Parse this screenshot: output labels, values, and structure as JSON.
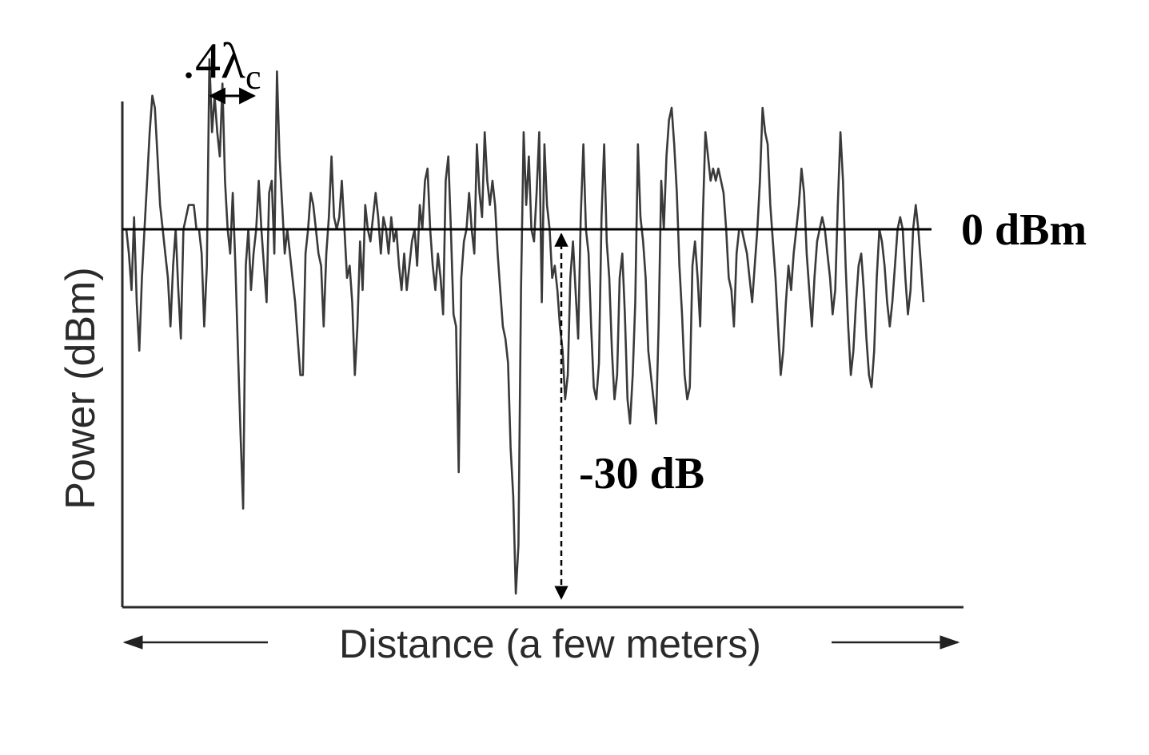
{
  "chart_data": {
    "type": "line",
    "title": "",
    "xlabel": "Distance (a few meters)",
    "ylabel": "Power (dBm)",
    "reference_label": "0 dBm",
    "reference_value": 0,
    "fade_label": "-30 dB",
    "fade_value": -30,
    "wavelength_label_main": ".4λ",
    "wavelength_label_sub": "c",
    "series": [
      {
        "values": [
          0,
          -2,
          -5,
          1,
          -6,
          -10,
          -4,
          0,
          4,
          8,
          11,
          10,
          6,
          2,
          0,
          -2,
          -4,
          -8,
          -3,
          0,
          -5,
          -9,
          0,
          1,
          2,
          2,
          2,
          0,
          0,
          -2,
          -8,
          -3,
          14,
          8,
          11,
          8,
          6,
          12,
          4,
          0,
          -2,
          3,
          -3,
          -10,
          -17,
          -23,
          -3,
          0,
          -5,
          -2,
          0,
          4,
          0,
          -3,
          -6,
          3,
          4,
          -2,
          13,
          6,
          2,
          -2,
          0,
          -2,
          -4,
          -6,
          -9,
          -12,
          -12,
          -2,
          0,
          3,
          2,
          0,
          -2,
          -3,
          -8,
          -2,
          1,
          6,
          1,
          0,
          1,
          4,
          0,
          -4,
          -3,
          -6,
          -12,
          -8,
          -1,
          -5,
          2,
          0,
          -1,
          1,
          3,
          1,
          -2,
          1,
          0,
          -2,
          1,
          -1,
          0,
          -3,
          -5,
          -2,
          -5,
          -3,
          -1,
          0,
          -3,
          2,
          0,
          4,
          5,
          0,
          -3,
          -5,
          -2,
          -4,
          -7,
          4,
          6,
          0,
          -7,
          -8,
          -20,
          -4,
          -1,
          0,
          3,
          0,
          -2,
          7,
          3,
          1,
          8,
          4,
          2,
          4,
          2,
          -2,
          -5,
          -8,
          -9,
          -11,
          -18,
          -22,
          -30,
          -26,
          -5,
          8,
          2,
          6,
          0,
          -1,
          3,
          8,
          -6,
          7,
          2,
          0,
          -4,
          -3,
          -5,
          -8,
          -10,
          -14,
          -12,
          -4,
          -1,
          -5,
          -9,
          1,
          7,
          0,
          -2,
          -8,
          -13,
          -14,
          -11,
          1,
          7,
          -1,
          -4,
          -10,
          -14,
          -12,
          -4,
          -2,
          -7,
          -14,
          -16,
          -12,
          -6,
          7,
          1,
          -1,
          -4,
          -10,
          -12,
          -14,
          -16,
          -8,
          4,
          0,
          6,
          9,
          10,
          7,
          3,
          -3,
          -7,
          -12,
          -14,
          -13,
          -3,
          -1,
          -4,
          -8,
          1,
          8,
          6,
          4,
          5,
          4,
          5,
          4,
          3,
          0,
          -4,
          -5,
          -8,
          -2,
          0,
          0,
          -1,
          -2,
          -4,
          -6,
          -3,
          0,
          4,
          10,
          8,
          7,
          2,
          -1,
          -4,
          -8,
          -12,
          -10,
          -6,
          -3,
          -5,
          -2,
          0,
          2,
          5,
          3,
          -2,
          -5,
          -8,
          -4,
          -1,
          0,
          1,
          0,
          -2,
          -4,
          -7,
          -5,
          2,
          8,
          4,
          -3,
          -8,
          -12,
          -10,
          -6,
          -3,
          -2,
          -5,
          -9,
          -12,
          -13,
          -10,
          -4,
          0,
          -1,
          -3,
          -6,
          -8,
          -6,
          -3,
          0,
          1,
          0,
          -4,
          -7,
          -5,
          0,
          2,
          0,
          -3,
          -6
        ]
      }
    ],
    "grid": false,
    "legend": "none"
  }
}
